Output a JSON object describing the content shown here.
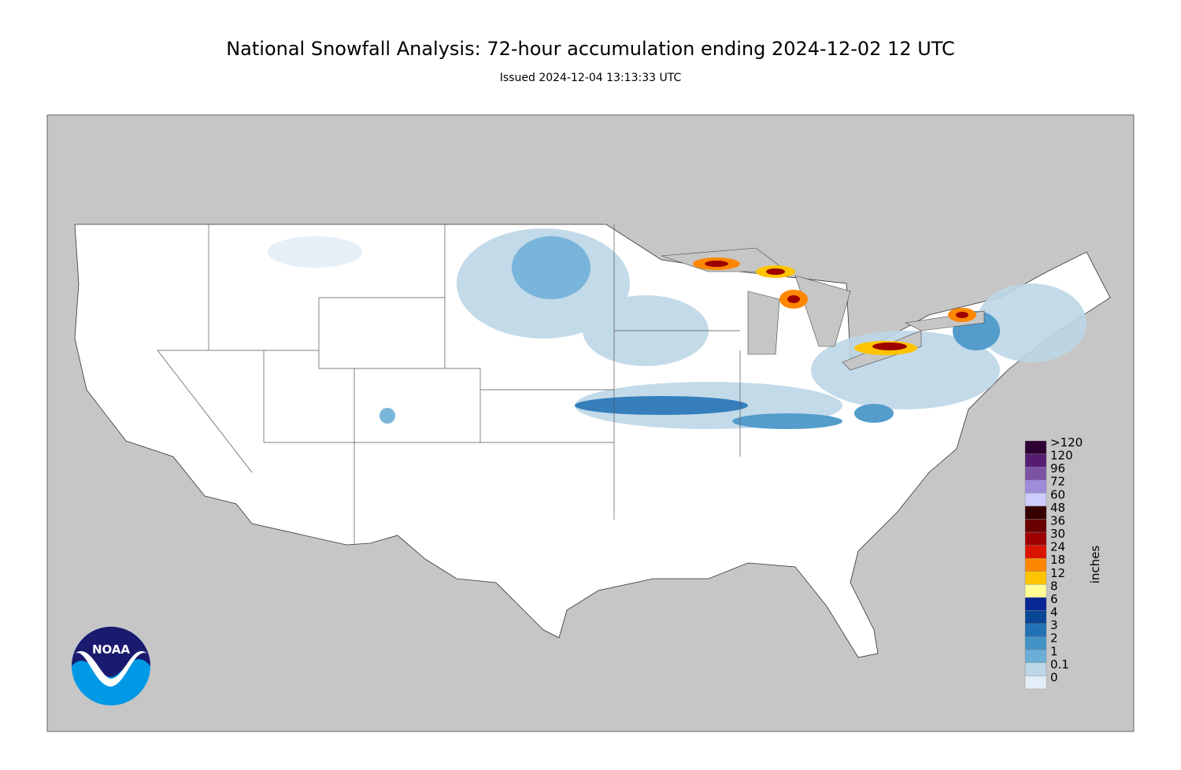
{
  "header": {
    "title": "National Snowfall Analysis: 72-hour accumulation ending 2024-12-02 12 UTC",
    "subtitle": "Issued 2024-12-04 13:13:33 UTC"
  },
  "legend": {
    "title": "inches",
    "items": [
      {
        "label": ">120",
        "color": "#2e0033"
      },
      {
        "label": "120",
        "color": "#561c72"
      },
      {
        "label": "96",
        "color": "#7c52a5"
      },
      {
        "label": "72",
        "color": "#9f8cd8"
      },
      {
        "label": "60",
        "color": "#ccccff"
      },
      {
        "label": "48",
        "color": "#360000"
      },
      {
        "label": "36",
        "color": "#690000"
      },
      {
        "label": "30",
        "color": "#9e0000"
      },
      {
        "label": "24",
        "color": "#db1400"
      },
      {
        "label": "18",
        "color": "#ff8700"
      },
      {
        "label": "12",
        "color": "#ffc400"
      },
      {
        "label": "8",
        "color": "#ffff96"
      },
      {
        "label": "6",
        "color": "#082694"
      },
      {
        "label": "4",
        "color": "#084594"
      },
      {
        "label": "3",
        "color": "#2171b5"
      },
      {
        "label": "2",
        "color": "#4292c6"
      },
      {
        "label": "1",
        "color": "#6baed6"
      },
      {
        "label": "0.1",
        "color": "#bdd7e7"
      },
      {
        "label": "0",
        "color": "#e4eef8"
      }
    ]
  },
  "logo": {
    "text": "NOAA"
  }
}
